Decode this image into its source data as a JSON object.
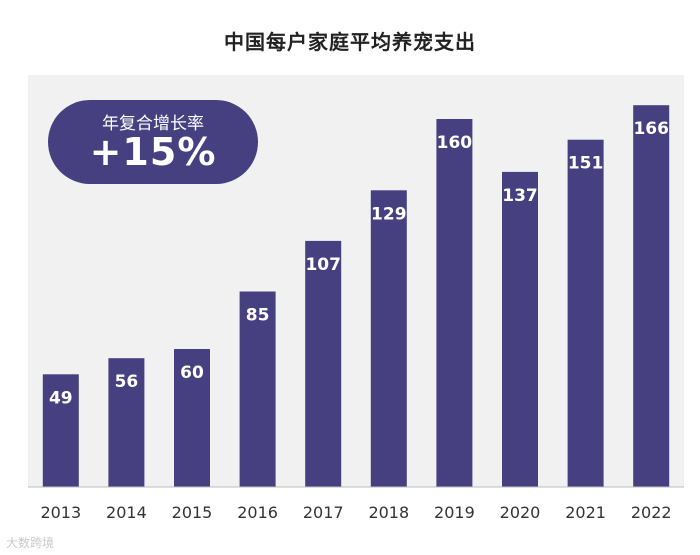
{
  "chart_data": {
    "type": "bar",
    "title": "中国每户家庭平均养宠支出",
    "categories": [
      "2013",
      "2014",
      "2015",
      "2016",
      "2017",
      "2018",
      "2019",
      "2020",
      "2021",
      "2022"
    ],
    "values": [
      49,
      56,
      60,
      85,
      107,
      129,
      160,
      137,
      151,
      166
    ],
    "xlabel": "",
    "ylabel": "",
    "ylim": [
      0,
      180
    ],
    "grid": false,
    "bar_color": "#463f80",
    "label_color": "#ffffff",
    "annotation": {
      "label": "年复合增长率",
      "value": "+15%"
    }
  },
  "watermark": "大数跨境"
}
